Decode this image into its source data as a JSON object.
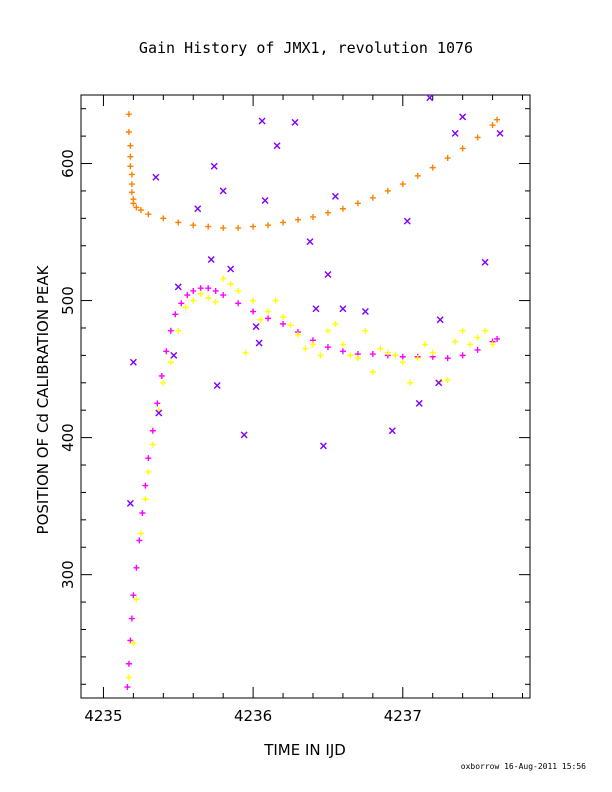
{
  "chart_data": {
    "type": "scatter",
    "title": "Gain History of JMX1, revolution 1076",
    "xlabel": "TIME IN IJD",
    "ylabel": "POSITION OF Cd CALIBRATION PEAK",
    "xlim": [
      4234.85,
      4237.85
    ],
    "ylim": [
      210,
      650
    ],
    "x_ticks": [
      4235,
      4236,
      4237
    ],
    "y_ticks": [
      300,
      400,
      500,
      600
    ],
    "credit": "oxborrow 16-Aug-2011 15:56",
    "series": [
      {
        "marker": "+",
        "color": "#ff8000",
        "points": [
          [
            4235.17,
            636
          ],
          [
            4235.17,
            623
          ],
          [
            4235.18,
            613
          ],
          [
            4235.18,
            605
          ],
          [
            4235.18,
            598
          ],
          [
            4235.19,
            592
          ],
          [
            4235.19,
            585
          ],
          [
            4235.19,
            579
          ],
          [
            4235.2,
            574
          ],
          [
            4235.2,
            571
          ],
          [
            4235.22,
            568
          ],
          [
            4235.25,
            566
          ],
          [
            4235.3,
            563
          ],
          [
            4235.4,
            560
          ],
          [
            4235.5,
            557
          ],
          [
            4235.6,
            555
          ],
          [
            4235.7,
            554
          ],
          [
            4235.8,
            553
          ],
          [
            4235.9,
            553
          ],
          [
            4236.0,
            554
          ],
          [
            4236.1,
            555
          ],
          [
            4236.2,
            557
          ],
          [
            4236.3,
            559
          ],
          [
            4236.4,
            561
          ],
          [
            4236.5,
            564
          ],
          [
            4236.6,
            567
          ],
          [
            4236.7,
            571
          ],
          [
            4236.8,
            575
          ],
          [
            4236.9,
            580
          ],
          [
            4237.0,
            585
          ],
          [
            4237.1,
            591
          ],
          [
            4237.2,
            597
          ],
          [
            4237.3,
            604
          ],
          [
            4237.4,
            611
          ],
          [
            4237.5,
            619
          ],
          [
            4237.6,
            628
          ],
          [
            4237.63,
            632
          ]
        ]
      },
      {
        "marker": "+",
        "color": "#ff00ff",
        "points": [
          [
            4235.16,
            218
          ],
          [
            4235.17,
            235
          ],
          [
            4235.18,
            252
          ],
          [
            4235.19,
            268
          ],
          [
            4235.2,
            285
          ],
          [
            4235.22,
            305
          ],
          [
            4235.24,
            325
          ],
          [
            4235.26,
            345
          ],
          [
            4235.28,
            365
          ],
          [
            4235.3,
            385
          ],
          [
            4235.33,
            405
          ],
          [
            4235.36,
            425
          ],
          [
            4235.39,
            445
          ],
          [
            4235.42,
            463
          ],
          [
            4235.45,
            478
          ],
          [
            4235.48,
            490
          ],
          [
            4235.52,
            498
          ],
          [
            4235.56,
            504
          ],
          [
            4235.6,
            507
          ],
          [
            4235.65,
            509
          ],
          [
            4235.7,
            509
          ],
          [
            4235.75,
            507
          ],
          [
            4235.8,
            504
          ],
          [
            4235.9,
            498
          ],
          [
            4236.0,
            492
          ],
          [
            4236.1,
            487
          ],
          [
            4236.2,
            483
          ],
          [
            4236.3,
            477
          ],
          [
            4236.4,
            471
          ],
          [
            4236.5,
            466
          ],
          [
            4236.6,
            463
          ],
          [
            4236.7,
            461
          ],
          [
            4236.8,
            461
          ],
          [
            4236.9,
            460
          ],
          [
            4237.0,
            459
          ],
          [
            4237.1,
            459
          ],
          [
            4237.2,
            459
          ],
          [
            4237.3,
            458
          ],
          [
            4237.4,
            460
          ],
          [
            4237.5,
            464
          ],
          [
            4237.6,
            470
          ],
          [
            4237.63,
            472
          ]
        ]
      },
      {
        "marker": "+",
        "color": "#ffff00",
        "points": [
          [
            4235.17,
            225
          ],
          [
            4235.2,
            250
          ],
          [
            4235.22,
            282
          ],
          [
            4235.25,
            330
          ],
          [
            4235.28,
            355
          ],
          [
            4235.3,
            375
          ],
          [
            4235.33,
            395
          ],
          [
            4235.37,
            420
          ],
          [
            4235.4,
            440
          ],
          [
            4235.45,
            455
          ],
          [
            4235.5,
            478
          ],
          [
            4235.55,
            495
          ],
          [
            4235.6,
            500
          ],
          [
            4235.65,
            505
          ],
          [
            4235.7,
            502
          ],
          [
            4235.75,
            499
          ],
          [
            4235.8,
            516
          ],
          [
            4235.85,
            512
          ],
          [
            4235.9,
            507
          ],
          [
            4235.95,
            462
          ],
          [
            4236.0,
            500
          ],
          [
            4236.05,
            486
          ],
          [
            4236.1,
            492
          ],
          [
            4236.15,
            500
          ],
          [
            4236.2,
            488
          ],
          [
            4236.25,
            482
          ],
          [
            4236.3,
            475
          ],
          [
            4236.35,
            465
          ],
          [
            4236.4,
            468
          ],
          [
            4236.45,
            460
          ],
          [
            4236.5,
            478
          ],
          [
            4236.55,
            483
          ],
          [
            4236.6,
            468
          ],
          [
            4236.65,
            460
          ],
          [
            4236.7,
            458
          ],
          [
            4236.75,
            478
          ],
          [
            4236.8,
            448
          ],
          [
            4236.85,
            465
          ],
          [
            4236.9,
            462
          ],
          [
            4236.95,
            460
          ],
          [
            4237.0,
            455
          ],
          [
            4237.05,
            440
          ],
          [
            4237.1,
            458
          ],
          [
            4237.15,
            468
          ],
          [
            4237.2,
            462
          ],
          [
            4237.25,
            441
          ],
          [
            4237.3,
            442
          ],
          [
            4237.35,
            470
          ],
          [
            4237.4,
            478
          ],
          [
            4237.45,
            468
          ],
          [
            4237.5,
            473
          ],
          [
            4237.55,
            478
          ],
          [
            4237.6,
            468
          ]
        ]
      },
      {
        "marker": "x",
        "color": "#8000ff",
        "points": [
          [
            4235.18,
            352
          ],
          [
            4235.2,
            455
          ],
          [
            4235.35,
            590
          ],
          [
            4235.37,
            418
          ],
          [
            4235.47,
            460
          ],
          [
            4235.5,
            510
          ],
          [
            4235.63,
            567
          ],
          [
            4235.72,
            530
          ],
          [
            4235.74,
            598
          ],
          [
            4235.76,
            438
          ],
          [
            4235.8,
            580
          ],
          [
            4235.85,
            523
          ],
          [
            4235.94,
            402
          ],
          [
            4236.02,
            481
          ],
          [
            4236.04,
            469
          ],
          [
            4236.06,
            631
          ],
          [
            4236.08,
            573
          ],
          [
            4236.16,
            613
          ],
          [
            4236.28,
            630
          ],
          [
            4236.38,
            543
          ],
          [
            4236.42,
            494
          ],
          [
            4236.47,
            394
          ],
          [
            4236.5,
            519
          ],
          [
            4236.55,
            576
          ],
          [
            4236.6,
            494
          ],
          [
            4236.75,
            492
          ],
          [
            4236.93,
            405
          ],
          [
            4237.03,
            558
          ],
          [
            4237.11,
            425
          ],
          [
            4237.18,
            648
          ],
          [
            4237.24,
            440
          ],
          [
            4237.25,
            486
          ],
          [
            4237.35,
            622
          ],
          [
            4237.4,
            634
          ],
          [
            4237.55,
            528
          ],
          [
            4237.65,
            622
          ]
        ]
      }
    ]
  }
}
